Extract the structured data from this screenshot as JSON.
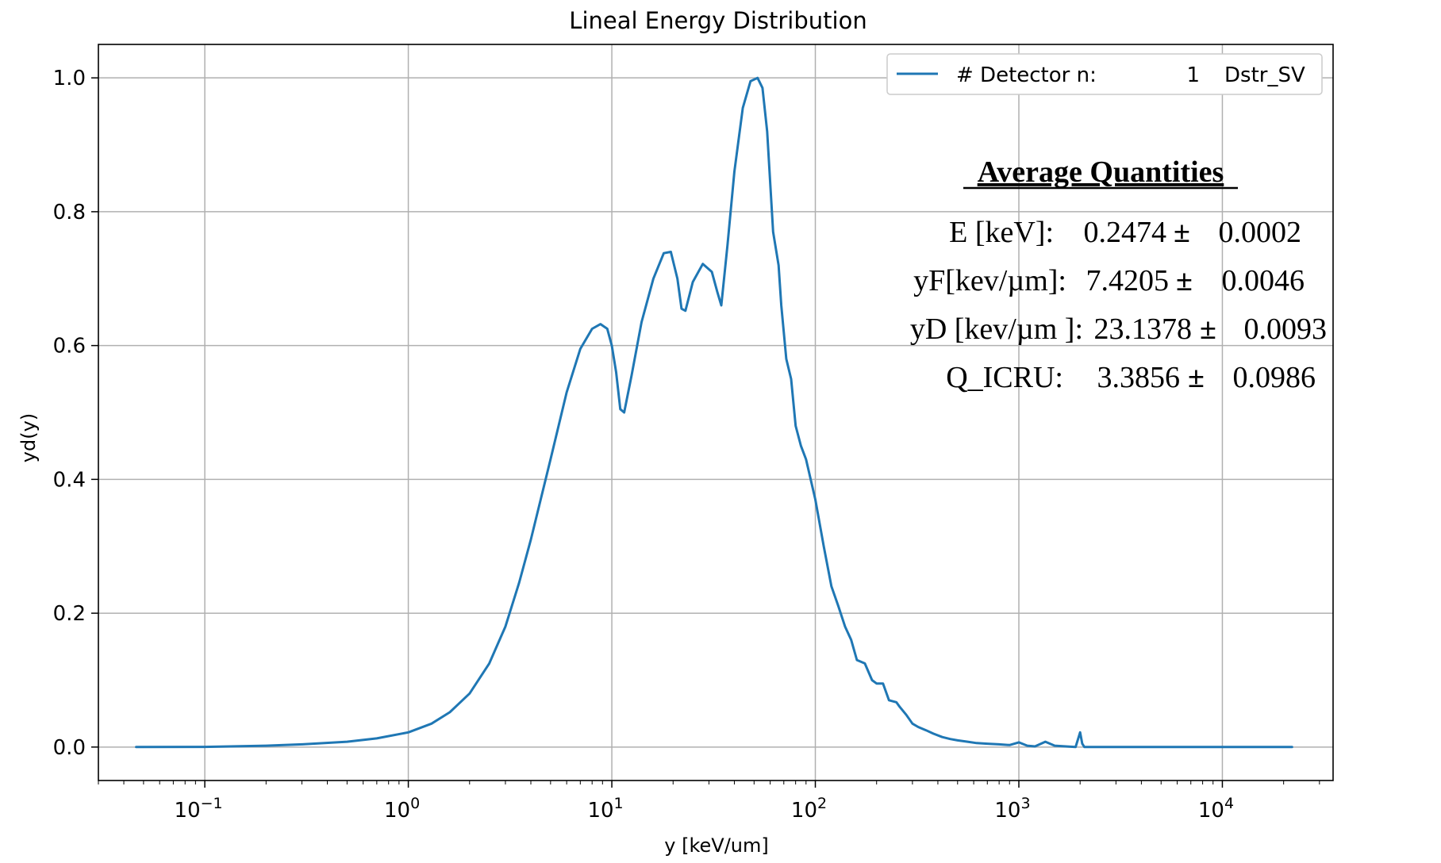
{
  "chart_data": {
    "type": "line",
    "title": "Lineal Energy Distribution",
    "xlabel": "y [keV/um]",
    "ylabel": "yd(y)",
    "xscale": "log",
    "xlim": [
      0.03,
      35000
    ],
    "ylim": [
      -0.05,
      1.05
    ],
    "grid": true,
    "x_tick_labels": [
      {
        "base": "10",
        "exp": "−1",
        "value": 0.1
      },
      {
        "base": "10",
        "exp": "0",
        "value": 1
      },
      {
        "base": "10",
        "exp": "1",
        "value": 10
      },
      {
        "base": "10",
        "exp": "2",
        "value": 100
      },
      {
        "base": "10",
        "exp": "3",
        "value": 1000
      },
      {
        "base": "10",
        "exp": "4",
        "value": 10000
      }
    ],
    "y_tick_labels": [
      "0.0",
      "0.2",
      "0.4",
      "0.6",
      "0.8",
      "1.0"
    ],
    "y_ticks": [
      0,
      0.2,
      0.4,
      0.6,
      0.8,
      1.0
    ],
    "legend": {
      "position": "top-right",
      "label": "# Detector n:",
      "number": "1",
      "name": "Dstr_SV"
    },
    "series": [
      {
        "name": "# Detector n: 1 Dstr_SV",
        "color": "#1f77b4",
        "x": [
          0.046,
          0.1,
          0.2,
          0.3,
          0.5,
          0.7,
          1.0,
          1.3,
          1.6,
          2.0,
          2.5,
          3.0,
          3.5,
          4.0,
          5.0,
          6.0,
          7.0,
          8.0,
          8.8,
          9.5,
          10.0,
          10.5,
          11.0,
          11.5,
          12.5,
          14.0,
          16.0,
          18.0,
          19.5,
          21.0,
          22.0,
          23.0,
          25.0,
          28.0,
          31.0,
          33.0,
          34.5,
          37.0,
          40.0,
          44.0,
          48.0,
          52.0,
          55.0,
          58.0,
          62.0,
          66.0,
          68.0,
          72.0,
          76.0,
          80.0,
          85.0,
          90.0,
          100.0,
          110.0,
          120.0,
          130.0,
          140.0,
          150.0,
          160.0,
          175.0,
          190.0,
          200.0,
          215.0,
          230.0,
          250.0,
          260.0,
          280.0,
          300.0,
          320.0,
          350.0,
          380.0,
          420.0,
          460.0,
          500.0,
          560.0,
          620.0,
          700.0,
          800.0,
          900.0,
          1000.0,
          1100.0,
          1200.0,
          1350.0,
          1500.0,
          1700.0,
          1900.0,
          2000.0,
          2050.0,
          2100.0,
          2500.0,
          5000.0,
          10000.0,
          22000.0
        ],
        "y": [
          0.0,
          0.0003,
          0.002,
          0.004,
          0.008,
          0.013,
          0.022,
          0.035,
          0.052,
          0.08,
          0.125,
          0.18,
          0.245,
          0.31,
          0.43,
          0.53,
          0.595,
          0.625,
          0.632,
          0.625,
          0.6,
          0.56,
          0.505,
          0.5,
          0.555,
          0.635,
          0.7,
          0.738,
          0.74,
          0.7,
          0.655,
          0.652,
          0.695,
          0.722,
          0.71,
          0.68,
          0.66,
          0.75,
          0.86,
          0.955,
          0.995,
          1.0,
          0.985,
          0.92,
          0.77,
          0.72,
          0.66,
          0.58,
          0.55,
          0.48,
          0.45,
          0.43,
          0.37,
          0.3,
          0.24,
          0.21,
          0.18,
          0.16,
          0.13,
          0.125,
          0.1,
          0.095,
          0.095,
          0.07,
          0.067,
          0.06,
          0.048,
          0.035,
          0.03,
          0.025,
          0.02,
          0.015,
          0.012,
          0.01,
          0.008,
          0.006,
          0.005,
          0.004,
          0.003,
          0.007,
          0.002,
          0.001,
          0.008,
          0.002,
          0.001,
          0.0,
          0.022,
          0.005,
          0.0,
          0.0,
          0.0,
          0.0,
          0.0
        ]
      }
    ],
    "annotation": {
      "title": "Average Quantities",
      "rows": [
        {
          "label": "E [keV]:",
          "value": "0.2474",
          "pm": "±",
          "err": "0.0002"
        },
        {
          "label": "yF[kev/µm]:",
          "value": "7.4205",
          "pm": "±",
          "err": "0.0046"
        },
        {
          "label": "yD [kev/µm ]:",
          "value": "23.1378",
          "pm": "±",
          "err": "0.0093"
        },
        {
          "label": "Q_ICRU:",
          "value": "3.3856",
          "pm": "±",
          "err": "0.0986"
        }
      ]
    }
  }
}
